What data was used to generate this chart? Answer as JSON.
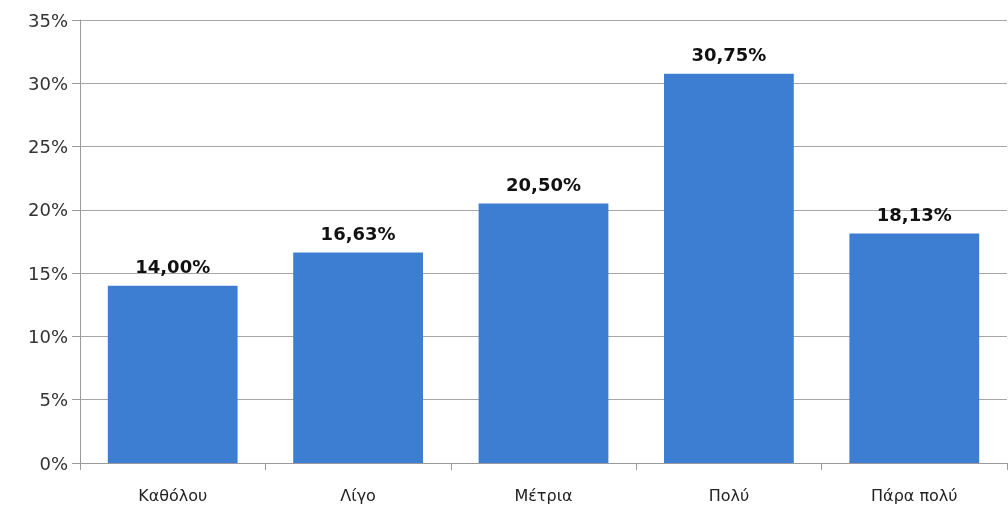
{
  "chart_data": {
    "type": "bar",
    "categories": [
      "Καθόλου",
      "Λίγο",
      "Μέτρια",
      "Πολύ",
      "Πάρα πολύ"
    ],
    "values": [
      14.0,
      16.63,
      20.5,
      30.75,
      18.13
    ],
    "value_labels": [
      "14,00%",
      "16,63%",
      "20,50%",
      "30,75%",
      "18,13%"
    ],
    "color": "#3d7ed2",
    "ylim": [
      0,
      35
    ],
    "yticks": [
      {
        "value": 0,
        "label": "0%"
      },
      {
        "value": 5,
        "label": "5%"
      },
      {
        "value": 10,
        "label": "10%"
      },
      {
        "value": 15,
        "label": "15%"
      },
      {
        "value": 20,
        "label": "20%"
      },
      {
        "value": 25,
        "label": "25%"
      },
      {
        "value": 30,
        "label": "30%"
      },
      {
        "value": 35,
        "label": "35%"
      }
    ],
    "grid": true
  }
}
